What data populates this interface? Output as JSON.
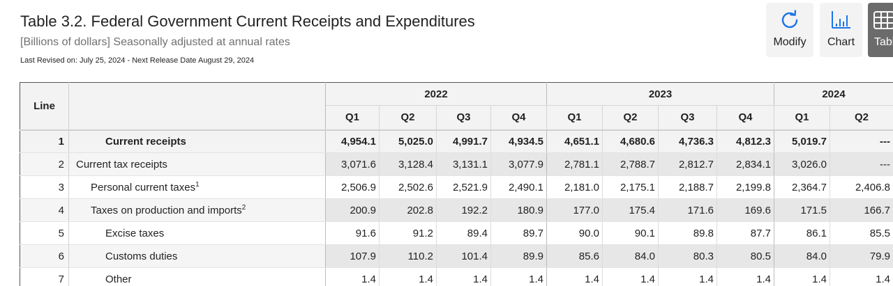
{
  "header": {
    "title": "Table 3.2. Federal Government Current Receipts and Expenditures",
    "subtitle": "[Billions of dollars] Seasonally adjusted at annual rates",
    "revised": "Last Revised on: July 25, 2024 - Next Release Date August 29, 2024"
  },
  "toolbar": {
    "modify_label": "Modify",
    "chart_label": "Chart",
    "table_label": "Table"
  },
  "table": {
    "line_header": "Line",
    "years": [
      {
        "label": "2022"
      },
      {
        "label": "2023"
      },
      {
        "label": "2024"
      }
    ],
    "quarters": [
      "Q1",
      "Q2",
      "Q3",
      "Q4",
      "Q1",
      "Q2",
      "Q3",
      "Q4",
      "Q1",
      "Q2"
    ],
    "rows": [
      {
        "line": "1",
        "label": "Current receipts",
        "sup": "",
        "values": [
          "4,954.1",
          "5,025.0",
          "4,991.7",
          "4,934.5",
          "4,651.1",
          "4,680.6",
          "4,736.3",
          "4,812.3",
          "5,019.7",
          "---"
        ]
      },
      {
        "line": "2",
        "label": "Current tax receipts",
        "sup": "",
        "values": [
          "3,071.6",
          "3,128.4",
          "3,131.1",
          "3,077.9",
          "2,781.1",
          "2,788.7",
          "2,812.7",
          "2,834.1",
          "3,026.0",
          "---"
        ]
      },
      {
        "line": "3",
        "label": "Personal current taxes",
        "sup": "1",
        "values": [
          "2,506.9",
          "2,502.6",
          "2,521.9",
          "2,490.1",
          "2,181.0",
          "2,175.1",
          "2,188.7",
          "2,199.8",
          "2,364.7",
          "2,406.8"
        ]
      },
      {
        "line": "4",
        "label": "Taxes on production and imports",
        "sup": "2",
        "values": [
          "200.9",
          "202.8",
          "192.2",
          "180.9",
          "177.0",
          "175.4",
          "171.6",
          "169.6",
          "171.5",
          "166.7"
        ]
      },
      {
        "line": "5",
        "label": "Excise taxes",
        "sup": "",
        "values": [
          "91.6",
          "91.2",
          "89.4",
          "89.7",
          "90.0",
          "90.1",
          "89.8",
          "87.7",
          "86.1",
          "85.5"
        ]
      },
      {
        "line": "6",
        "label": "Customs duties",
        "sup": "",
        "values": [
          "107.9",
          "110.2",
          "101.4",
          "89.9",
          "85.6",
          "84.0",
          "80.3",
          "80.5",
          "84.0",
          "79.9"
        ]
      },
      {
        "line": "7",
        "label": "Other",
        "sup": "",
        "values": [
          "1.4",
          "1.4",
          "1.4",
          "1.4",
          "1.4",
          "1.4",
          "1.4",
          "1.4",
          "1.4",
          "1.4"
        ]
      }
    ]
  }
}
